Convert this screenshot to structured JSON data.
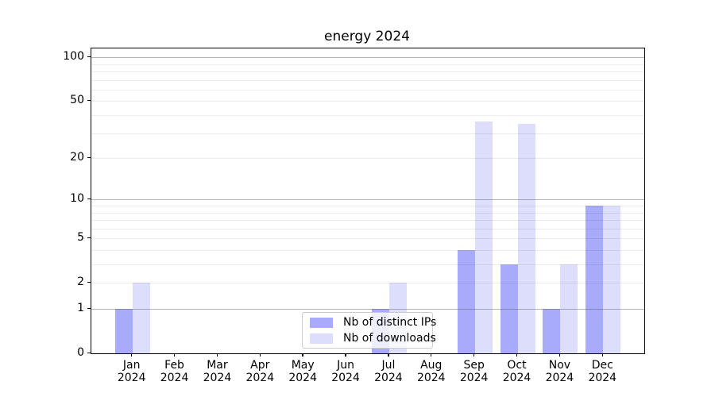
{
  "chart_data": {
    "type": "bar",
    "title": "energy 2024",
    "categories": [
      "Jan 2024",
      "Feb 2024",
      "Mar 2024",
      "Apr 2024",
      "May 2024",
      "Jun 2024",
      "Jul 2024",
      "Aug 2024",
      "Sep 2024",
      "Oct 2024",
      "Nov 2024",
      "Dec 2024"
    ],
    "series": [
      {
        "name": "Nb of distinct IPs",
        "color": "#a8abfb",
        "values": [
          1,
          0,
          0,
          0,
          0,
          0,
          1,
          0,
          4,
          3,
          1,
          9
        ]
      },
      {
        "name": "Nb of downloads",
        "color": "#dcdefb",
        "values": [
          2,
          0,
          0,
          0,
          0,
          0,
          2,
          0,
          36,
          35,
          3,
          9
        ]
      }
    ],
    "xlabel": "",
    "ylabel": "",
    "yscale": "log1p",
    "ylim": [
      0,
      115
    ],
    "y_tick_values": [
      0,
      1,
      2,
      5,
      10,
      20,
      50,
      100
    ],
    "y_tick_labels": [
      "0",
      "1",
      "2",
      "5",
      "10",
      "20",
      "50",
      "100"
    ],
    "y_major_gridlines": [
      1,
      10,
      100
    ],
    "y_minor_gridlines": [
      2,
      3,
      4,
      5,
      6,
      7,
      8,
      9,
      20,
      30,
      40,
      50,
      60,
      70,
      80,
      90
    ],
    "grid": true,
    "legend_position": "lower center"
  },
  "colors": {
    "background": "#ffffff",
    "axis": "#000000",
    "grid_major": "#b4b4b4",
    "grid_minor": "#ebebeb",
    "legend_border": "#cccccc"
  }
}
